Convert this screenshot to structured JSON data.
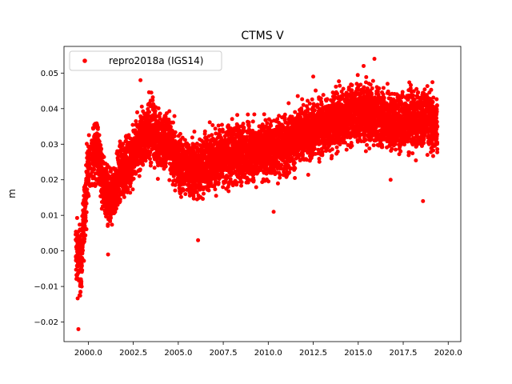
{
  "chart_data": {
    "type": "scatter",
    "title": "CTMS V",
    "xlabel": "",
    "ylabel": "m",
    "xlim": [
      1998.65,
      2020.7
    ],
    "ylim": [
      -0.0255,
      0.0575
    ],
    "x_ticks": [
      2000.0,
      2002.5,
      2005.0,
      2007.5,
      2010.0,
      2012.5,
      2015.0,
      2017.5,
      2020.0
    ],
    "x_tick_labels": [
      "2000.0",
      "2002.5",
      "2005.0",
      "2007.5",
      "2010.0",
      "2012.5",
      "2015.0",
      "2017.5",
      "2020.0"
    ],
    "y_ticks": [
      -0.02,
      -0.01,
      0.0,
      0.01,
      0.02,
      0.03,
      0.04,
      0.05
    ],
    "y_tick_labels": [
      "−0.02",
      "−0.01",
      "0.00",
      "0.01",
      "0.02",
      "0.03",
      "0.04",
      "0.05"
    ],
    "legend": {
      "position": "upper-left",
      "entries": [
        "repro2018a (IGS14)"
      ]
    },
    "grid": false,
    "series": [
      {
        "name": "repro2018a (IGS14)",
        "color": "#ff0000",
        "marker": "circle",
        "x_range": [
          1999.3,
          2019.4
        ],
        "trend": [
          [
            1999.3,
            0.0
          ],
          [
            1999.6,
            -0.004
          ],
          [
            1999.8,
            0.012
          ],
          [
            2000.0,
            0.024
          ],
          [
            2000.5,
            0.029
          ],
          [
            2000.8,
            0.019
          ],
          [
            2001.2,
            0.013
          ],
          [
            2001.7,
            0.021
          ],
          [
            2002.3,
            0.025
          ],
          [
            2003.0,
            0.032
          ],
          [
            2003.5,
            0.034
          ],
          [
            2004.0,
            0.031
          ],
          [
            2004.5,
            0.03
          ],
          [
            2005.0,
            0.024
          ],
          [
            2006.0,
            0.023
          ],
          [
            2007.0,
            0.026
          ],
          [
            2008.0,
            0.027
          ],
          [
            2009.0,
            0.028
          ],
          [
            2010.0,
            0.029
          ],
          [
            2011.0,
            0.03
          ],
          [
            2012.0,
            0.033
          ],
          [
            2013.0,
            0.035
          ],
          [
            2014.0,
            0.037
          ],
          [
            2015.0,
            0.039
          ],
          [
            2016.0,
            0.038
          ],
          [
            2017.0,
            0.036
          ],
          [
            2018.0,
            0.037
          ],
          [
            2019.0,
            0.037
          ],
          [
            2019.4,
            0.034
          ]
        ],
        "notable_points": [
          [
            1999.45,
            -0.022
          ],
          [
            2002.9,
            0.048
          ],
          [
            2006.1,
            0.003
          ],
          [
            2012.5,
            0.049
          ],
          [
            2015.3,
            0.052
          ],
          [
            2015.9,
            0.054
          ],
          [
            2018.6,
            0.014
          ],
          [
            2001.1,
            -0.001
          ],
          [
            2010.3,
            0.011
          ],
          [
            2016.8,
            0.02
          ]
        ]
      }
    ]
  }
}
